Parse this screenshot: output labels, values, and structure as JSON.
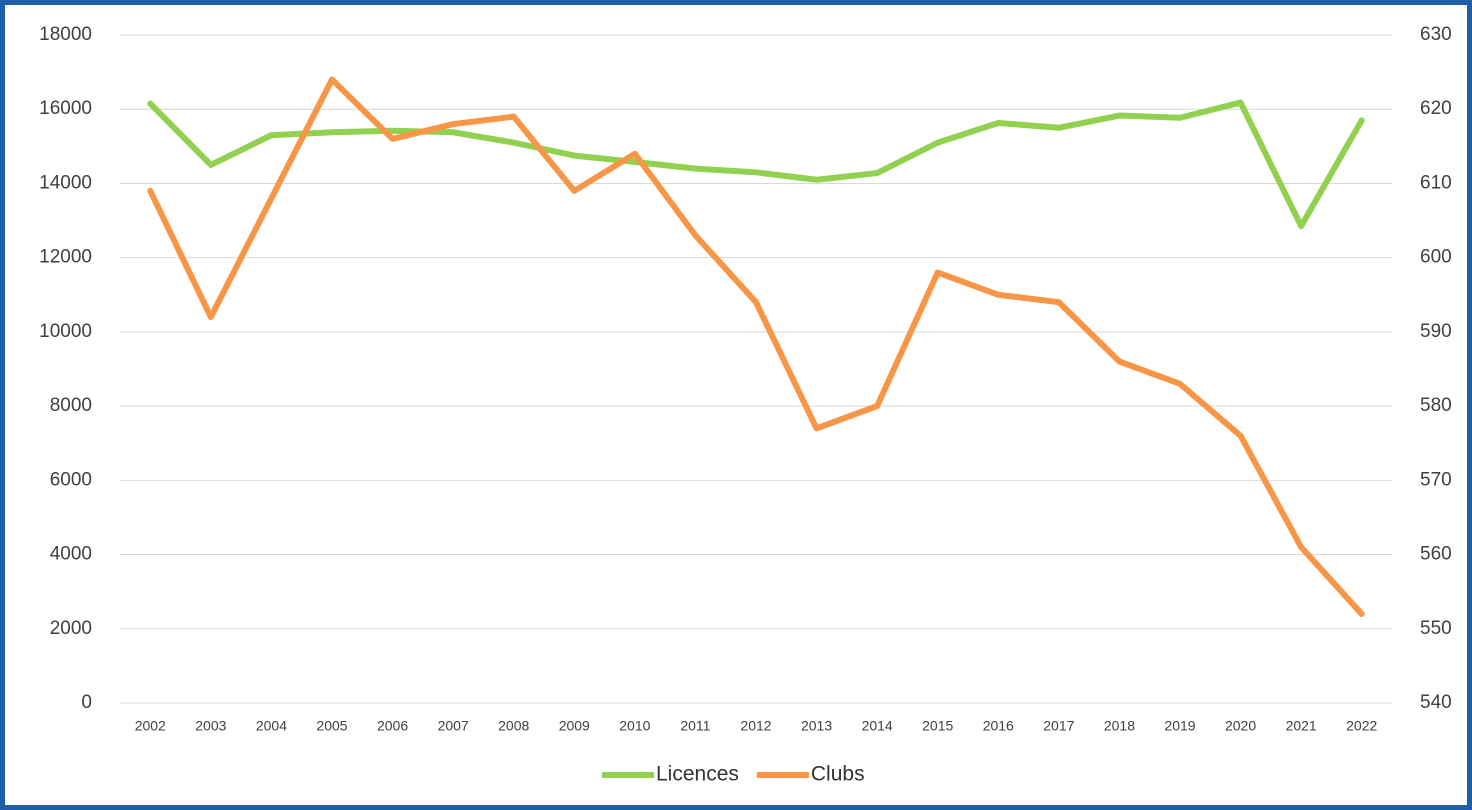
{
  "chart_data": {
    "type": "line",
    "categories": [
      "2002",
      "2003",
      "2004",
      "2005",
      "2006",
      "2007",
      "2008",
      "2009",
      "2010",
      "2011",
      "2012",
      "2013",
      "2014",
      "2015",
      "2016",
      "2017",
      "2018",
      "2019",
      "2020",
      "2021",
      "2022"
    ],
    "series": [
      {
        "name": "Licences",
        "color": "#92d050",
        "values": [
          16150,
          14500,
          15300,
          15380,
          15420,
          15380,
          15100,
          14750,
          14580,
          14400,
          14300,
          14100,
          14280,
          15100,
          15630,
          15500,
          15830,
          15770,
          16180,
          12850,
          15700
        ]
      },
      {
        "name": "Clubs",
        "color": "#f79646",
        "axis": "y2",
        "values": [
          609,
          592,
          608,
          624,
          616,
          618,
          619,
          609,
          614,
          603,
          594,
          577,
          580,
          598,
          595,
          594,
          586,
          583,
          576,
          561,
          552
        ]
      }
    ],
    "ylim": [
      0,
      18000
    ],
    "yticks": [
      0,
      2000,
      4000,
      6000,
      8000,
      10000,
      12000,
      14000,
      16000,
      18000
    ],
    "y2lim": [
      540,
      630
    ],
    "y2ticks": [
      540,
      550,
      560,
      570,
      580,
      590,
      600,
      610,
      620,
      630
    ],
    "grid": true,
    "legend": "bottom"
  }
}
